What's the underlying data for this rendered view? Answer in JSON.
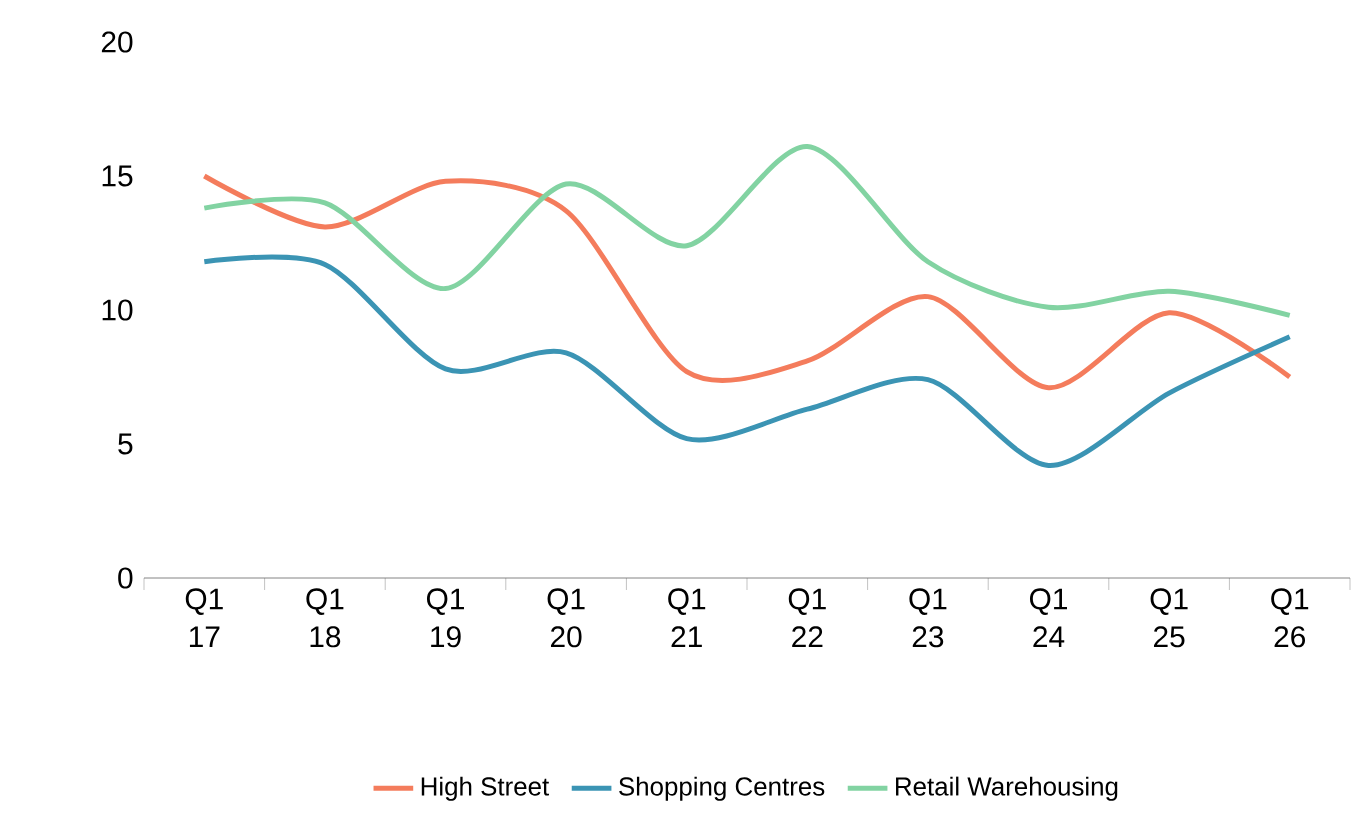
{
  "chart_data": {
    "type": "line",
    "categories": [
      "Q1 17",
      "Q1 18",
      "Q1 19",
      "Q1 20",
      "Q1 21",
      "Q1 22",
      "Q1 23",
      "Q1 24",
      "Q1 25",
      "Q1 26"
    ],
    "series": [
      {
        "name": "High Street",
        "color": "#f47c5c",
        "values": [
          15.0,
          13.1,
          14.8,
          13.7,
          7.7,
          8.1,
          10.5,
          7.1,
          9.9,
          7.5
        ]
      },
      {
        "name": "Shopping Centres",
        "color": "#3b94b4",
        "values": [
          11.8,
          11.7,
          7.8,
          8.4,
          5.2,
          6.3,
          7.4,
          4.2,
          6.9,
          9.0
        ]
      },
      {
        "name": "Retail Warehousing",
        "color": "#82d3a2",
        "values": [
          13.8,
          14.0,
          10.8,
          14.7,
          12.4,
          16.1,
          11.8,
          10.1,
          10.7,
          9.8
        ]
      }
    ],
    "ylim": [
      0,
      20
    ],
    "yticks": [
      0,
      5,
      10,
      15,
      20
    ],
    "grid": false,
    "legend": "bottom",
    "marker": "none",
    "line_style": "solid"
  }
}
